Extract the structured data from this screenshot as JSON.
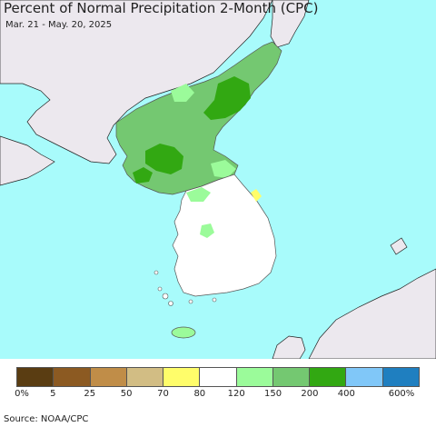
{
  "title": "Percent of Normal Precipitation 2-Month (CPC)",
  "subtitle": "Mar. 21 - May. 20, 2025",
  "source": "Source: NOAA/CPC",
  "colors": {
    "sea": "#a8fbfb",
    "land_outside": "#ece8ee",
    "coast": "#222222"
  },
  "legend": {
    "colors": [
      "#5a3d12",
      "#8c5a22",
      "#c08d48",
      "#d2bd84",
      "#fffd6a",
      "#ffffff",
      "#9bfb9a",
      "#74c871",
      "#32a812",
      "#80c7f8",
      "#1f7fc0"
    ],
    "labels": [
      "0%",
      "5",
      "25",
      "50",
      "70",
      "80",
      "120",
      "150",
      "200",
      "400",
      "600%"
    ]
  }
}
